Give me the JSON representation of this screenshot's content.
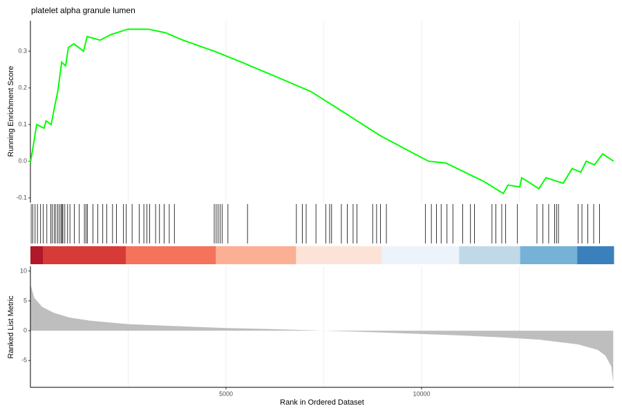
{
  "chart_data": [
    {
      "type": "line",
      "title": "platelet alpha granule lumen",
      "ylabel": "Running Enrichment Score",
      "color": "#00ff00",
      "x": [
        0,
        70,
        160,
        350,
        400,
        530,
        640,
        700,
        800,
        900,
        970,
        1110,
        1360,
        1450,
        1780,
        2050,
        2490,
        3020,
        3460,
        3900,
        4700,
        5400,
        6290,
        7170,
        8060,
        8940,
        9820,
        10180,
        10620,
        11590,
        12090,
        12210,
        12510,
        12560,
        13000,
        13180,
        13620,
        13850,
        14070,
        14210,
        14420,
        14630,
        14910
      ],
      "values": [
        -0.004,
        0.04,
        0.1,
        0.09,
        0.11,
        0.1,
        0.16,
        0.19,
        0.27,
        0.26,
        0.31,
        0.32,
        0.3,
        0.34,
        0.33,
        0.345,
        0.36,
        0.36,
        0.35,
        0.33,
        0.3,
        0.27,
        0.23,
        0.19,
        0.13,
        0.07,
        0.02,
        0.0,
        -0.005,
        -0.055,
        -0.088,
        -0.065,
        -0.07,
        -0.045,
        -0.075,
        -0.045,
        -0.06,
        -0.02,
        -0.03,
        0.0,
        -0.01,
        0.02,
        0.0
      ],
      "xlim": [
        0,
        14912
      ],
      "ylim": [
        -0.113,
        0.383
      ],
      "yticks": [
        -0.1,
        {
          "value": 0,
          "label": "0.0"
        },
        0.1,
        0.2,
        0.3
      ],
      "xgrid": [
        2500,
        5000,
        7500,
        10000,
        12500
      ]
    },
    {
      "type": "rug",
      "color": "#000000",
      "xlim": [
        0,
        14912
      ],
      "hits": [
        20,
        60,
        120,
        180,
        260,
        330,
        420,
        520,
        560,
        610,
        650,
        700,
        740,
        780,
        810,
        830,
        880,
        950,
        1010,
        1120,
        1250,
        1380,
        1420,
        1460,
        1600,
        1720,
        1850,
        1950,
        2100,
        2200,
        2380,
        2450,
        2600,
        2780,
        2900,
        2980,
        3050,
        3200,
        3300,
        3420,
        3550,
        3680,
        4700,
        4750,
        4800,
        4850,
        4900,
        5050,
        5550,
        6800,
        6950,
        7050,
        7300,
        7550,
        7650,
        7700,
        7950,
        8100,
        8250,
        8350,
        8750,
        8850,
        8950,
        9100,
        10100,
        10250,
        10380,
        10500,
        10650,
        10800,
        11050,
        11250,
        11350,
        11800,
        11900,
        12050,
        12150,
        12450,
        12950,
        13100,
        13250,
        13400,
        13450,
        13500,
        14000,
        14100,
        14250,
        14400,
        14550
      ],
      "strip": [
        {
          "start": 0,
          "end": 320,
          "color": "#b2182b"
        },
        {
          "start": 320,
          "end": 2440,
          "color": "#d73b37"
        },
        {
          "start": 2440,
          "end": 4740,
          "color": "#f4735a"
        },
        {
          "start": 4740,
          "end": 6790,
          "color": "#fbb096"
        },
        {
          "start": 6790,
          "end": 8980,
          "color": "#fde3d7"
        },
        {
          "start": 8980,
          "end": 10960,
          "color": "#edf3fb"
        },
        {
          "start": 10960,
          "end": 12520,
          "color": "#c1d9e7"
        },
        {
          "start": 12520,
          "end": 13980,
          "color": "#76b2d8"
        },
        {
          "start": 13980,
          "end": 14912,
          "color": "#3a80bd"
        }
      ]
    },
    {
      "type": "area",
      "ylabel": "Ranked List Metric",
      "xlabel": "Rank in Ordered Dataset",
      "color": "#bebebe",
      "x": [
        0,
        100,
        300,
        600,
        1000,
        1500,
        2500,
        4000,
        5000,
        6000,
        7000,
        7500,
        8000,
        9000,
        10000,
        11000,
        12000,
        13000,
        14000,
        14500,
        14700,
        14850,
        14900
      ],
      "values": [
        7.8,
        5.5,
        4.0,
        3.0,
        2.2,
        1.7,
        1.1,
        0.7,
        0.45,
        0.3,
        0.1,
        0,
        -0.1,
        -0.3,
        -0.55,
        -0.8,
        -1.1,
        -1.5,
        -2.3,
        -3.2,
        -4.2,
        -6,
        -8.7
      ],
      "xlim": [
        0,
        14912
      ],
      "ylim": [
        -9.5,
        10.8
      ],
      "yticks": [
        -5,
        0,
        5,
        10
      ],
      "xticks": [
        5000,
        10000
      ],
      "xgrid": [
        2500,
        5000,
        7500,
        10000,
        12500
      ]
    }
  ]
}
